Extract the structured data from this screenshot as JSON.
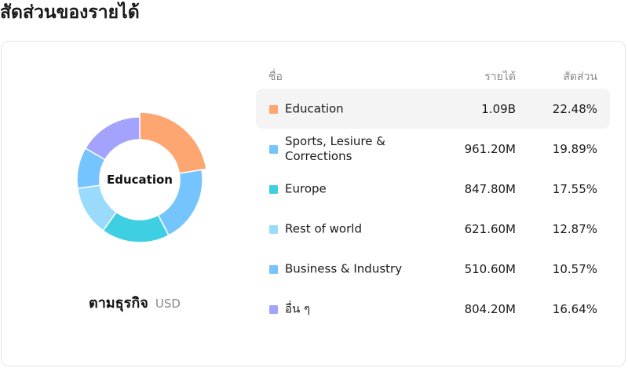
{
  "page": {
    "title": "สัดส่วนของรายได้"
  },
  "chart": {
    "center_label": "Education",
    "caption_title": "ตามธุรกิจ",
    "caption_currency": "USD"
  },
  "table": {
    "headers": {
      "name": "ชื่อ",
      "revenue": "รายได้",
      "share": "สัดส่วน"
    },
    "rows": [
      {
        "name": "Education",
        "revenue": "1.09B",
        "share": "22.48%",
        "color": "#FDA672"
      },
      {
        "name": "Sports, Lesiure & Corrections",
        "revenue": "961.20M",
        "share": "19.89%",
        "color": "#75C4FE"
      },
      {
        "name": "Europe",
        "revenue": "847.80M",
        "share": "17.55%",
        "color": "#3ECFE2"
      },
      {
        "name": "Rest of world",
        "revenue": "621.60M",
        "share": "12.87%",
        "color": "#9ADBFC"
      },
      {
        "name": "Business & Industry",
        "revenue": "510.60M",
        "share": "10.57%",
        "color": "#75C4FE"
      },
      {
        "name": "อื่น ๆ",
        "revenue": "804.20M",
        "share": "16.64%",
        "color": "#A3A3FE"
      }
    ],
    "active_index": 0
  },
  "chart_data": {
    "type": "pie",
    "categories": [
      "Education",
      "Sports, Lesiure & Corrections",
      "Europe",
      "Rest of world",
      "Business & Industry",
      "อื่น ๆ"
    ],
    "values": [
      22.48,
      19.89,
      17.55,
      12.87,
      10.57,
      16.64
    ],
    "colors": [
      "#FDA672",
      "#75C4FE",
      "#3ECFE2",
      "#9ADBFC",
      "#75C4FE",
      "#A3A3FE"
    ],
    "highlighted": "Education",
    "donut": true
  }
}
